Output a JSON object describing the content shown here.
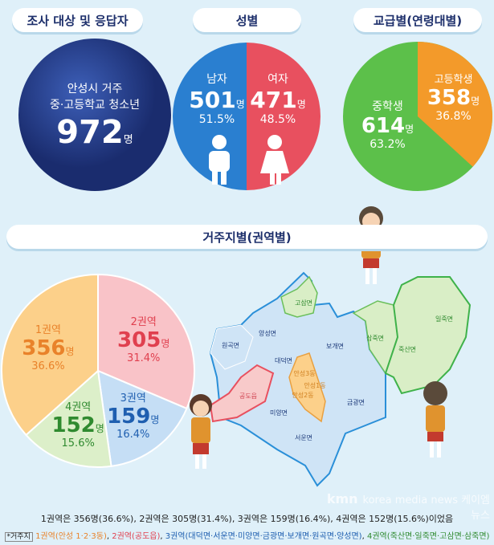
{
  "sections": {
    "respondents": "조사 대상 및 응답자",
    "gender": "성별",
    "grade": "교급별(연령대별)",
    "region": "거주지별(권역별)"
  },
  "respondents": {
    "line1": "안성시 거주",
    "line2": "중·고등학교 청소년",
    "count": "972",
    "unit": "명"
  },
  "gender": {
    "male": {
      "label": "남자",
      "count": "501",
      "unit": "명",
      "pct": "51.5%"
    },
    "female": {
      "label": "여자",
      "count": "471",
      "unit": "명",
      "pct": "48.5%"
    }
  },
  "grade": {
    "middle": {
      "label": "중학생",
      "count": "614",
      "unit": "명",
      "pct": "63.2%"
    },
    "high": {
      "label": "고등학생",
      "count": "358",
      "unit": "명",
      "pct": "36.8%"
    }
  },
  "colors": {
    "navy": "#1f3a8a",
    "male": "#2a7fd0",
    "female": "#e8505f",
    "middle": "#5cc04a",
    "high": "#f39a2a",
    "r1": "#fbbf6a",
    "r2": "#f7b8bf",
    "r3": "#bcd9f2",
    "r4": "#d9eec6"
  },
  "region_pie": [
    {
      "label": "1권역",
      "count": "356",
      "unit": "명",
      "pct": "36.6%",
      "value": 36.6,
      "color": "#fcd08a",
      "text": "#e9822a"
    },
    {
      "label": "2권역",
      "count": "305",
      "unit": "명",
      "pct": "31.4%",
      "value": 31.4,
      "color": "#f9c3c8",
      "text": "#e0404f"
    },
    {
      "label": "3권역",
      "count": "159",
      "unit": "명",
      "pct": "16.4%",
      "value": 16.4,
      "color": "#c5def5",
      "text": "#1f5fb0"
    },
    {
      "label": "4권역",
      "count": "152",
      "unit": "명",
      "pct": "15.6%",
      "value": 15.6,
      "color": "#dcefc9",
      "text": "#2f8a2f"
    }
  ],
  "map_labels": [
    "원곡면",
    "양성면",
    "고삼면",
    "보개면",
    "대덕면",
    "삼죽면",
    "일죽면",
    "죽산면",
    "공도읍",
    "안성3동",
    "안성1동",
    "안성2동",
    "미양면",
    "금광면",
    "서운면"
  ],
  "footer": {
    "summary": "1권역은 356명(36.6%), 2권역은 305명(31.4%), 3권역은 159명(16.4%), 4권역은 152명(15.6%)이었음",
    "tag": "*거주지",
    "r1": "1권역(안성 1·2·3동)",
    "r2": "2권역(공도읍)",
    "r3": "3권역(대덕면·서운면·미양면·금광면·보개면·원곡면·양성면)",
    "r4": "4권역(죽산면·일죽면·고삼면·삼죽면)",
    "watermark": "korea media news 케이엠뉴스",
    "logo": "kmn"
  }
}
